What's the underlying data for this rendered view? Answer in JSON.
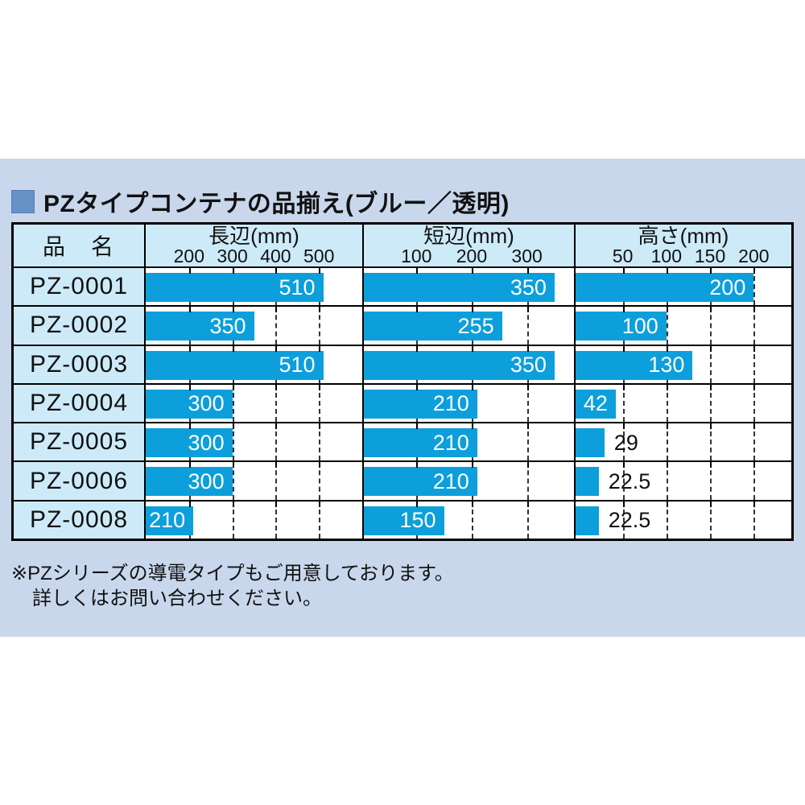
{
  "title": {
    "text": "PZタイプコンテナの品揃え(ブルー／透明)"
  },
  "colors": {
    "panel_background": "#c9d7ec",
    "header_cell_background": "#cdeaf8",
    "bar": "#0c9fdb",
    "title_bullet": "#6593c8",
    "border": "#000000"
  },
  "footnote": {
    "line1": "※PZシリーズの導電タイプもご用意しております。",
    "line2": "詳しくはお問い合わせください。"
  },
  "chart_data": {
    "type": "bar",
    "title": "PZタイプコンテナの品揃え(ブルー／透明)",
    "name_header": "品　名",
    "legend_position": "none",
    "grid": "dashed-vertical",
    "columns": [
      {
        "label": "長辺(mm)",
        "ticks": [
          200,
          300,
          400,
          500
        ],
        "domain": [
          100,
          600
        ]
      },
      {
        "label": "短辺(mm)",
        "ticks": [
          100,
          200,
          300
        ],
        "domain": [
          5,
          385
        ]
      },
      {
        "label": "高さ(mm)",
        "ticks": [
          50,
          100,
          150,
          200
        ],
        "domain": [
          -4,
          243
        ]
      }
    ],
    "rows": [
      {
        "name": "PZ-0001",
        "values": [
          510,
          350,
          200
        ],
        "labels": [
          "510",
          "350",
          "200"
        ],
        "inside": [
          true,
          true,
          true
        ]
      },
      {
        "name": "PZ-0002",
        "values": [
          350,
          255,
          100
        ],
        "labels": [
          "350",
          "255",
          "100"
        ],
        "inside": [
          true,
          true,
          true
        ]
      },
      {
        "name": "PZ-0003",
        "values": [
          510,
          350,
          130
        ],
        "labels": [
          "510",
          "350",
          "130"
        ],
        "inside": [
          true,
          true,
          true
        ]
      },
      {
        "name": "PZ-0004",
        "values": [
          300,
          210,
          42
        ],
        "labels": [
          "300",
          "210",
          "42"
        ],
        "inside": [
          true,
          true,
          true
        ]
      },
      {
        "name": "PZ-0005",
        "values": [
          300,
          210,
          29
        ],
        "labels": [
          "300",
          "210",
          "29"
        ],
        "inside": [
          true,
          true,
          false
        ]
      },
      {
        "name": "PZ-0006",
        "values": [
          300,
          210,
          22.5
        ],
        "labels": [
          "300",
          "210",
          "22.5"
        ],
        "inside": [
          true,
          true,
          false
        ]
      },
      {
        "name": "PZ-0008",
        "values": [
          210,
          150,
          22.5
        ],
        "labels": [
          "210",
          "150",
          "22.5"
        ],
        "inside": [
          true,
          true,
          false
        ]
      }
    ]
  }
}
